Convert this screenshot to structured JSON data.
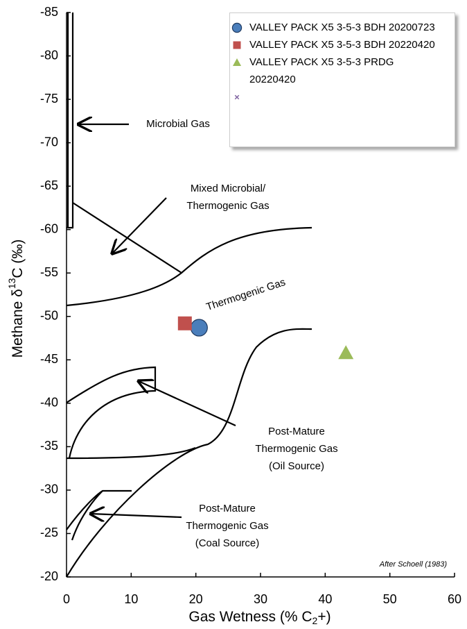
{
  "chart_data": {
    "type": "scatter",
    "x_label": [
      "Gas Wetness (% C",
      "2",
      "+)"
    ],
    "y_label": [
      "Methane  δ",
      "13",
      "C (‰)"
    ],
    "xlim": [
      0,
      60
    ],
    "xticks": [
      0,
      10,
      20,
      30,
      40,
      50,
      60
    ],
    "ylim": [
      -20,
      -85
    ],
    "yticks": [
      -20,
      -25,
      -30,
      -35,
      -40,
      -45,
      -50,
      -55,
      -60,
      -65,
      -70,
      -75,
      -80,
      -85
    ],
    "grid": false,
    "legend": "top-right",
    "series": [
      {
        "name": "VALLEY PACK X5 3-5-3 BDH 20200723",
        "color": "#4a7ebb",
        "marker": "circle",
        "x": [
          20.5
        ],
        "values": [
          -48.7
        ]
      },
      {
        "name": "VALLEY PACK X5 3-5-3 BDH 20220420",
        "color": "#c0504d",
        "marker": "square",
        "x": [
          18.3
        ],
        "values": [
          -49.2
        ]
      },
      {
        "name": "VALLEY PACK X5 3-5-3 PRDG 20220420",
        "color": "#9bbb59",
        "marker": "triangle",
        "x": [
          43.2
        ],
        "values": [
          -45.8
        ]
      },
      {
        "name": null,
        "color": "#8064a2",
        "marker": "x",
        "x": [],
        "values": []
      }
    ],
    "annotations": {
      "microbial": [
        "Microbial Gas"
      ],
      "mixed": [
        "Mixed Microbial/",
        "Thermogenic Gas"
      ],
      "thermogenic": [
        "Thermogenic Gas"
      ],
      "oil": [
        "Post-Mature",
        "Thermogenic Gas",
        "(Oil Source)"
      ],
      "coal": [
        "Post-Mature",
        "Thermogenic Gas",
        "(Coal Source)"
      ],
      "source": [
        "After Schoell (1983)"
      ]
    }
  }
}
